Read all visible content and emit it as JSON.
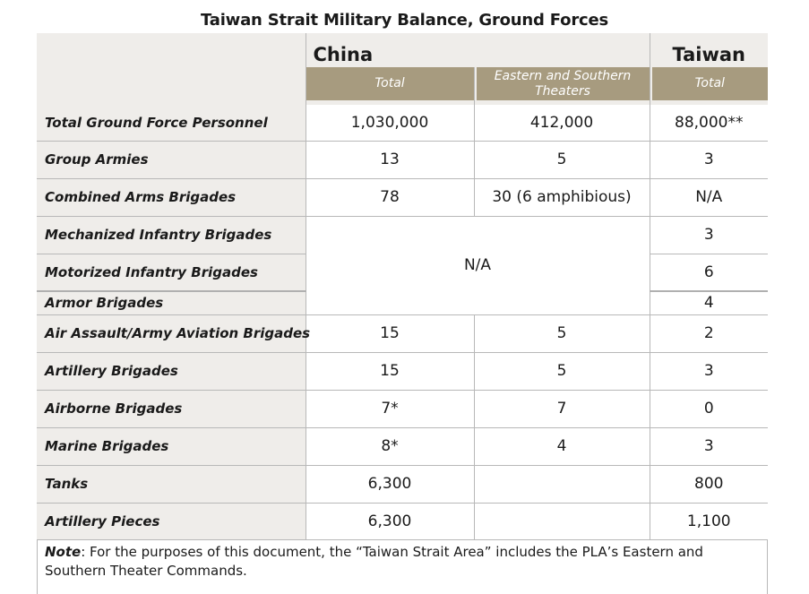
{
  "title": "Taiwan Strait Military Balance, Ground Forces",
  "header": {
    "china": "China",
    "taiwan": "Taiwan",
    "col_total": "Total",
    "col_theaters": "Eastern and Southern Theaters",
    "col_taiwan_total": "Total"
  },
  "rows": [
    {
      "label": "Total Ground Force Personnel",
      "china_total": "1,030,000",
      "theaters": "412,000",
      "taiwan": "88,000**"
    },
    {
      "label": "Group Armies",
      "china_total": "13",
      "theaters": "5",
      "taiwan": "3"
    },
    {
      "label": "Combined Arms Brigades",
      "china_total": "78",
      "theaters": "30 (6 amphibious)",
      "taiwan": "N/A"
    },
    {
      "label": "Mechanized Infantry Brigades",
      "taiwan": "3"
    },
    {
      "label": "Motorized Infantry Brigades",
      "taiwan": "6"
    },
    {
      "label": "Armor Brigades",
      "taiwan": "4"
    },
    {
      "label": "Air Assault/Army Aviation Brigades",
      "china_total": "15",
      "theaters": "5",
      "taiwan": "2"
    },
    {
      "label": "Artillery Brigades",
      "china_total": "15",
      "theaters": "5",
      "taiwan": "3"
    },
    {
      "label": "Airborne Brigades",
      "china_total": "7*",
      "theaters": "7",
      "taiwan": "0"
    },
    {
      "label": "Marine Brigades",
      "china_total": "8*",
      "theaters": "4",
      "taiwan": "3"
    },
    {
      "label": "Tanks",
      "china_total": "6,300",
      "taiwan": "800"
    },
    {
      "label": "Artillery Pieces",
      "china_total": "6,300",
      "taiwan": "1,100"
    }
  ],
  "merged_na": "N/A",
  "note": {
    "label": "Note",
    "text": ": For the purposes of this document, the “Taiwan Strait Area” includes the PLA’s Eastern and Southern Theater Commands."
  }
}
